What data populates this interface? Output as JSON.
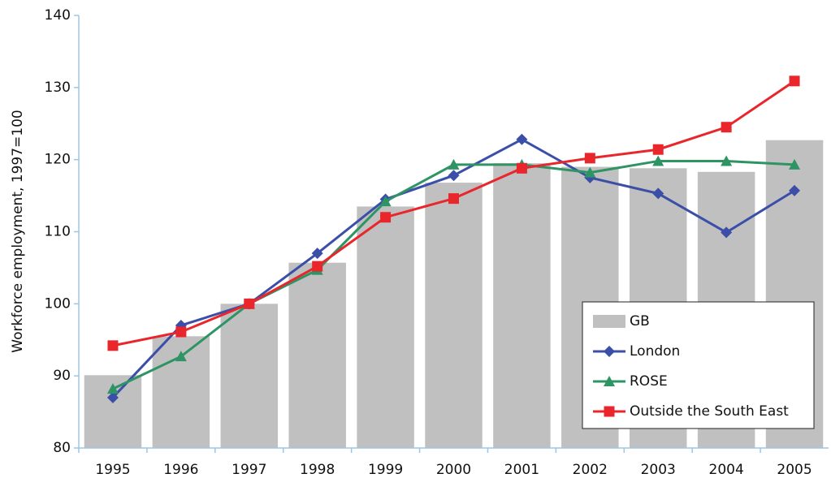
{
  "chart_data": {
    "type": "bar-line",
    "y_label": "Workforce employment, 1997=100",
    "categories": [
      "1995",
      "1996",
      "1997",
      "1998",
      "1999",
      "2000",
      "2001",
      "2002",
      "2003",
      "2004",
      "2005"
    ],
    "series": [
      {
        "name": "GB",
        "type": "bar",
        "color": "#c0c0c0",
        "values": [
          90.1,
          95.5,
          100,
          105.7,
          113.5,
          116.8,
          119.5,
          119,
          118.8,
          118.3,
          122.7
        ]
      },
      {
        "name": "London",
        "type": "line",
        "marker": "diamond",
        "color": "#3b4ea8",
        "values": [
          87,
          97,
          100,
          107,
          114.5,
          117.8,
          122.8,
          117.5,
          115.3,
          109.9,
          115.7
        ]
      },
      {
        "name": "ROSE",
        "type": "line",
        "marker": "triangle",
        "color": "#2e9464",
        "values": [
          88.2,
          92.7,
          100,
          104.7,
          114.2,
          119.3,
          119.3,
          118.2,
          119.8,
          119.8,
          119.3
        ]
      },
      {
        "name": "Outside the South East",
        "type": "line",
        "marker": "square",
        "color": "#e8262b",
        "values": [
          94.2,
          96.1,
          100,
          105.2,
          112,
          114.6,
          118.8,
          120.2,
          121.4,
          124.5,
          130.9
        ]
      }
    ],
    "ylim": [
      80,
      140
    ],
    "yticks": [
      80,
      90,
      100,
      110,
      120,
      130,
      140
    ],
    "grid": false,
    "legend": "lower-right"
  }
}
